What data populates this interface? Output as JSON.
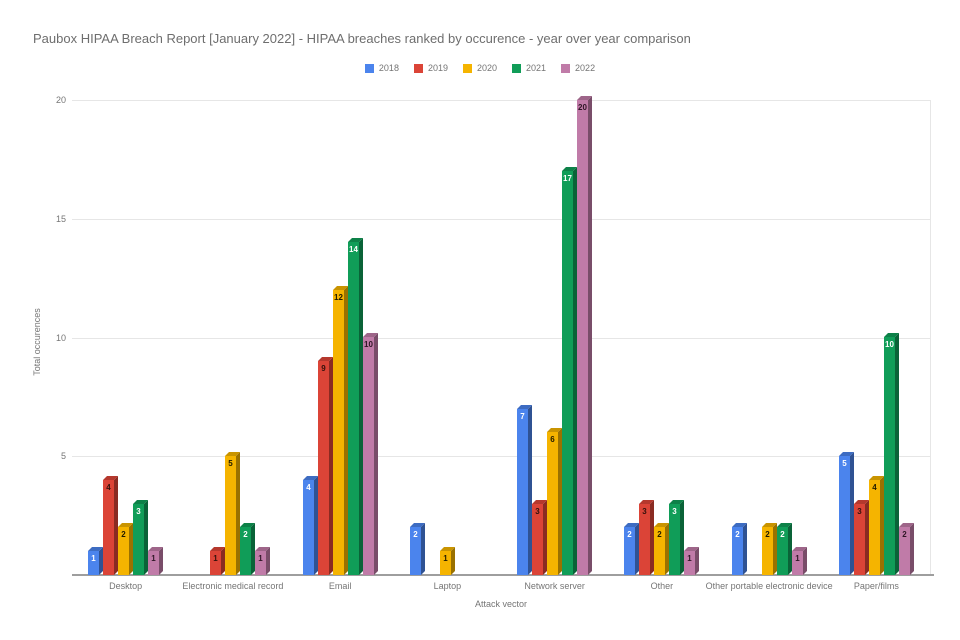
{
  "chart_data": {
    "type": "bar",
    "style": "grouped-3d-columns",
    "title": "Paubox HIPAA Breach Report [January 2022] - HIPAA breaches ranked by occurence - year over year comparison",
    "xlabel": "Attack vector",
    "ylabel": "Total occurences",
    "ylim": [
      0,
      20
    ],
    "y_ticks": [
      5,
      10,
      15,
      20
    ],
    "grid": true,
    "legend_position": "top",
    "categories": [
      "Desktop",
      "Electronic medical record",
      "Email",
      "Laptop",
      "Network server",
      "Other",
      "Other portable electronic device",
      "Paper/films"
    ],
    "series": [
      {
        "name": "2018",
        "color": "#4b84ed",
        "side_color": "#2f5293",
        "top_color": "#3d6cc2",
        "label_color": "#ffffff",
        "values": [
          1,
          0,
          4,
          2,
          7,
          2,
          2,
          5
        ]
      },
      {
        "name": "2019",
        "color": "#db4437",
        "side_color": "#8a2b22",
        "top_color": "#b5382d",
        "label_color": "#33100b",
        "values": [
          4,
          1,
          9,
          0,
          3,
          3,
          0,
          3
        ]
      },
      {
        "name": "2020",
        "color": "#f5b400",
        "side_color": "#9a7100",
        "top_color": "#c99400",
        "label_color": "#1f1a00",
        "values": [
          2,
          5,
          12,
          1,
          6,
          2,
          2,
          4
        ]
      },
      {
        "name": "2021",
        "color": "#109d58",
        "side_color": "#0a6338",
        "top_color": "#0d8148",
        "label_color": "#ffffff",
        "values": [
          3,
          2,
          14,
          0,
          17,
          3,
          2,
          10
        ]
      },
      {
        "name": "2022",
        "color": "#c07ba8",
        "side_color": "#794d69",
        "top_color": "#9e6589",
        "label_color": "#2e1525",
        "values": [
          1,
          1,
          10,
          0,
          20,
          1,
          1,
          2
        ]
      }
    ]
  }
}
